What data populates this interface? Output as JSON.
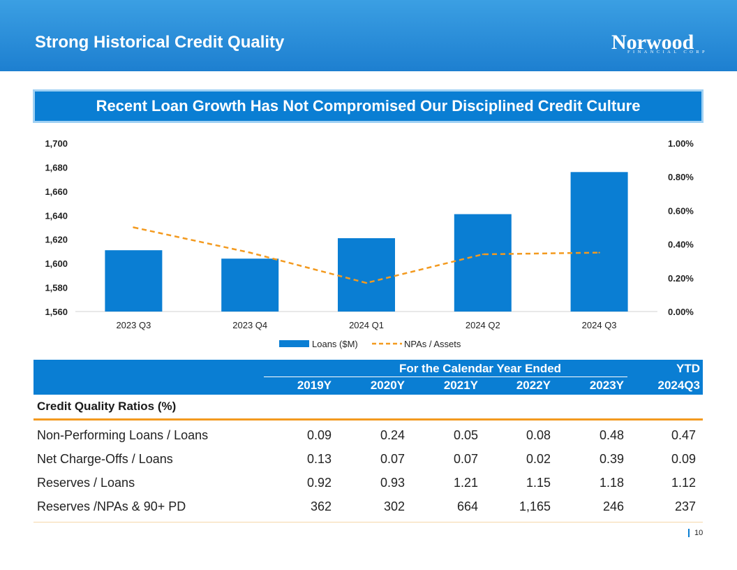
{
  "header": {
    "title": "Strong Historical Credit Quality"
  },
  "logo": {
    "name": "Norwood",
    "subtitle": "FINANCIAL CORP"
  },
  "banner": {
    "text": "Recent Loan Growth Has Not Compromised Our Disciplined Credit Culture"
  },
  "chart_data": {
    "type": "bar",
    "categories": [
      "2023 Q3",
      "2023 Q4",
      "2024 Q1",
      "2024 Q2",
      "2024 Q3"
    ],
    "series": [
      {
        "name": "Loans ($M)",
        "type": "bar",
        "axis": "left",
        "values": [
          1611,
          1604,
          1621,
          1641,
          1676
        ]
      },
      {
        "name": "NPAs / Assets",
        "type": "line",
        "style": "dashed",
        "axis": "right",
        "values": [
          0.5,
          0.35,
          0.17,
          0.34,
          0.35
        ]
      }
    ],
    "y_left": {
      "min": 1560,
      "max": 1700,
      "ticks": [
        "1,700",
        "1,680",
        "1,660",
        "1,640",
        "1,620",
        "1,600",
        "1,580",
        "1,560"
      ]
    },
    "y_right": {
      "min": 0,
      "max": 1.0,
      "ticks": [
        "1.00%",
        "0.80%",
        "0.60%",
        "0.40%",
        "0.20%",
        "0.00%"
      ]
    },
    "legend": [
      "Loans ($M)",
      "NPAs / Assets"
    ],
    "legend_position": "bottom",
    "colors": {
      "bar": "#0a7ed3",
      "line": "#f39a1f"
    }
  },
  "table": {
    "group_header": "For the Calendar Year Ended",
    "ytd_header": "YTD",
    "columns": [
      "2019Y",
      "2020Y",
      "2021Y",
      "2022Y",
      "2023Y",
      "2024Q3"
    ],
    "section": "Credit Quality Ratios (%)",
    "rows": [
      {
        "label": "Non-Performing Loans / Loans",
        "values": [
          "0.09",
          "0.24",
          "0.05",
          "0.08",
          "0.48",
          "0.47"
        ]
      },
      {
        "label": "Net Charge-Offs / Loans",
        "values": [
          "0.13",
          "0.07",
          "0.07",
          "0.02",
          "0.39",
          "0.09"
        ]
      },
      {
        "label": "Reserves / Loans",
        "values": [
          "0.92",
          "0.93",
          "1.21",
          "1.15",
          "1.18",
          "1.12"
        ]
      },
      {
        "label": "Reserves /NPAs & 90+ PD",
        "values": [
          "362",
          "302",
          "664",
          "1,165",
          "246",
          "237"
        ]
      }
    ]
  },
  "page": {
    "number": "10"
  },
  "colors": {
    "header": "#1d7fd0",
    "banner": "#0a7ed3",
    "accent": "#f39a1f"
  }
}
